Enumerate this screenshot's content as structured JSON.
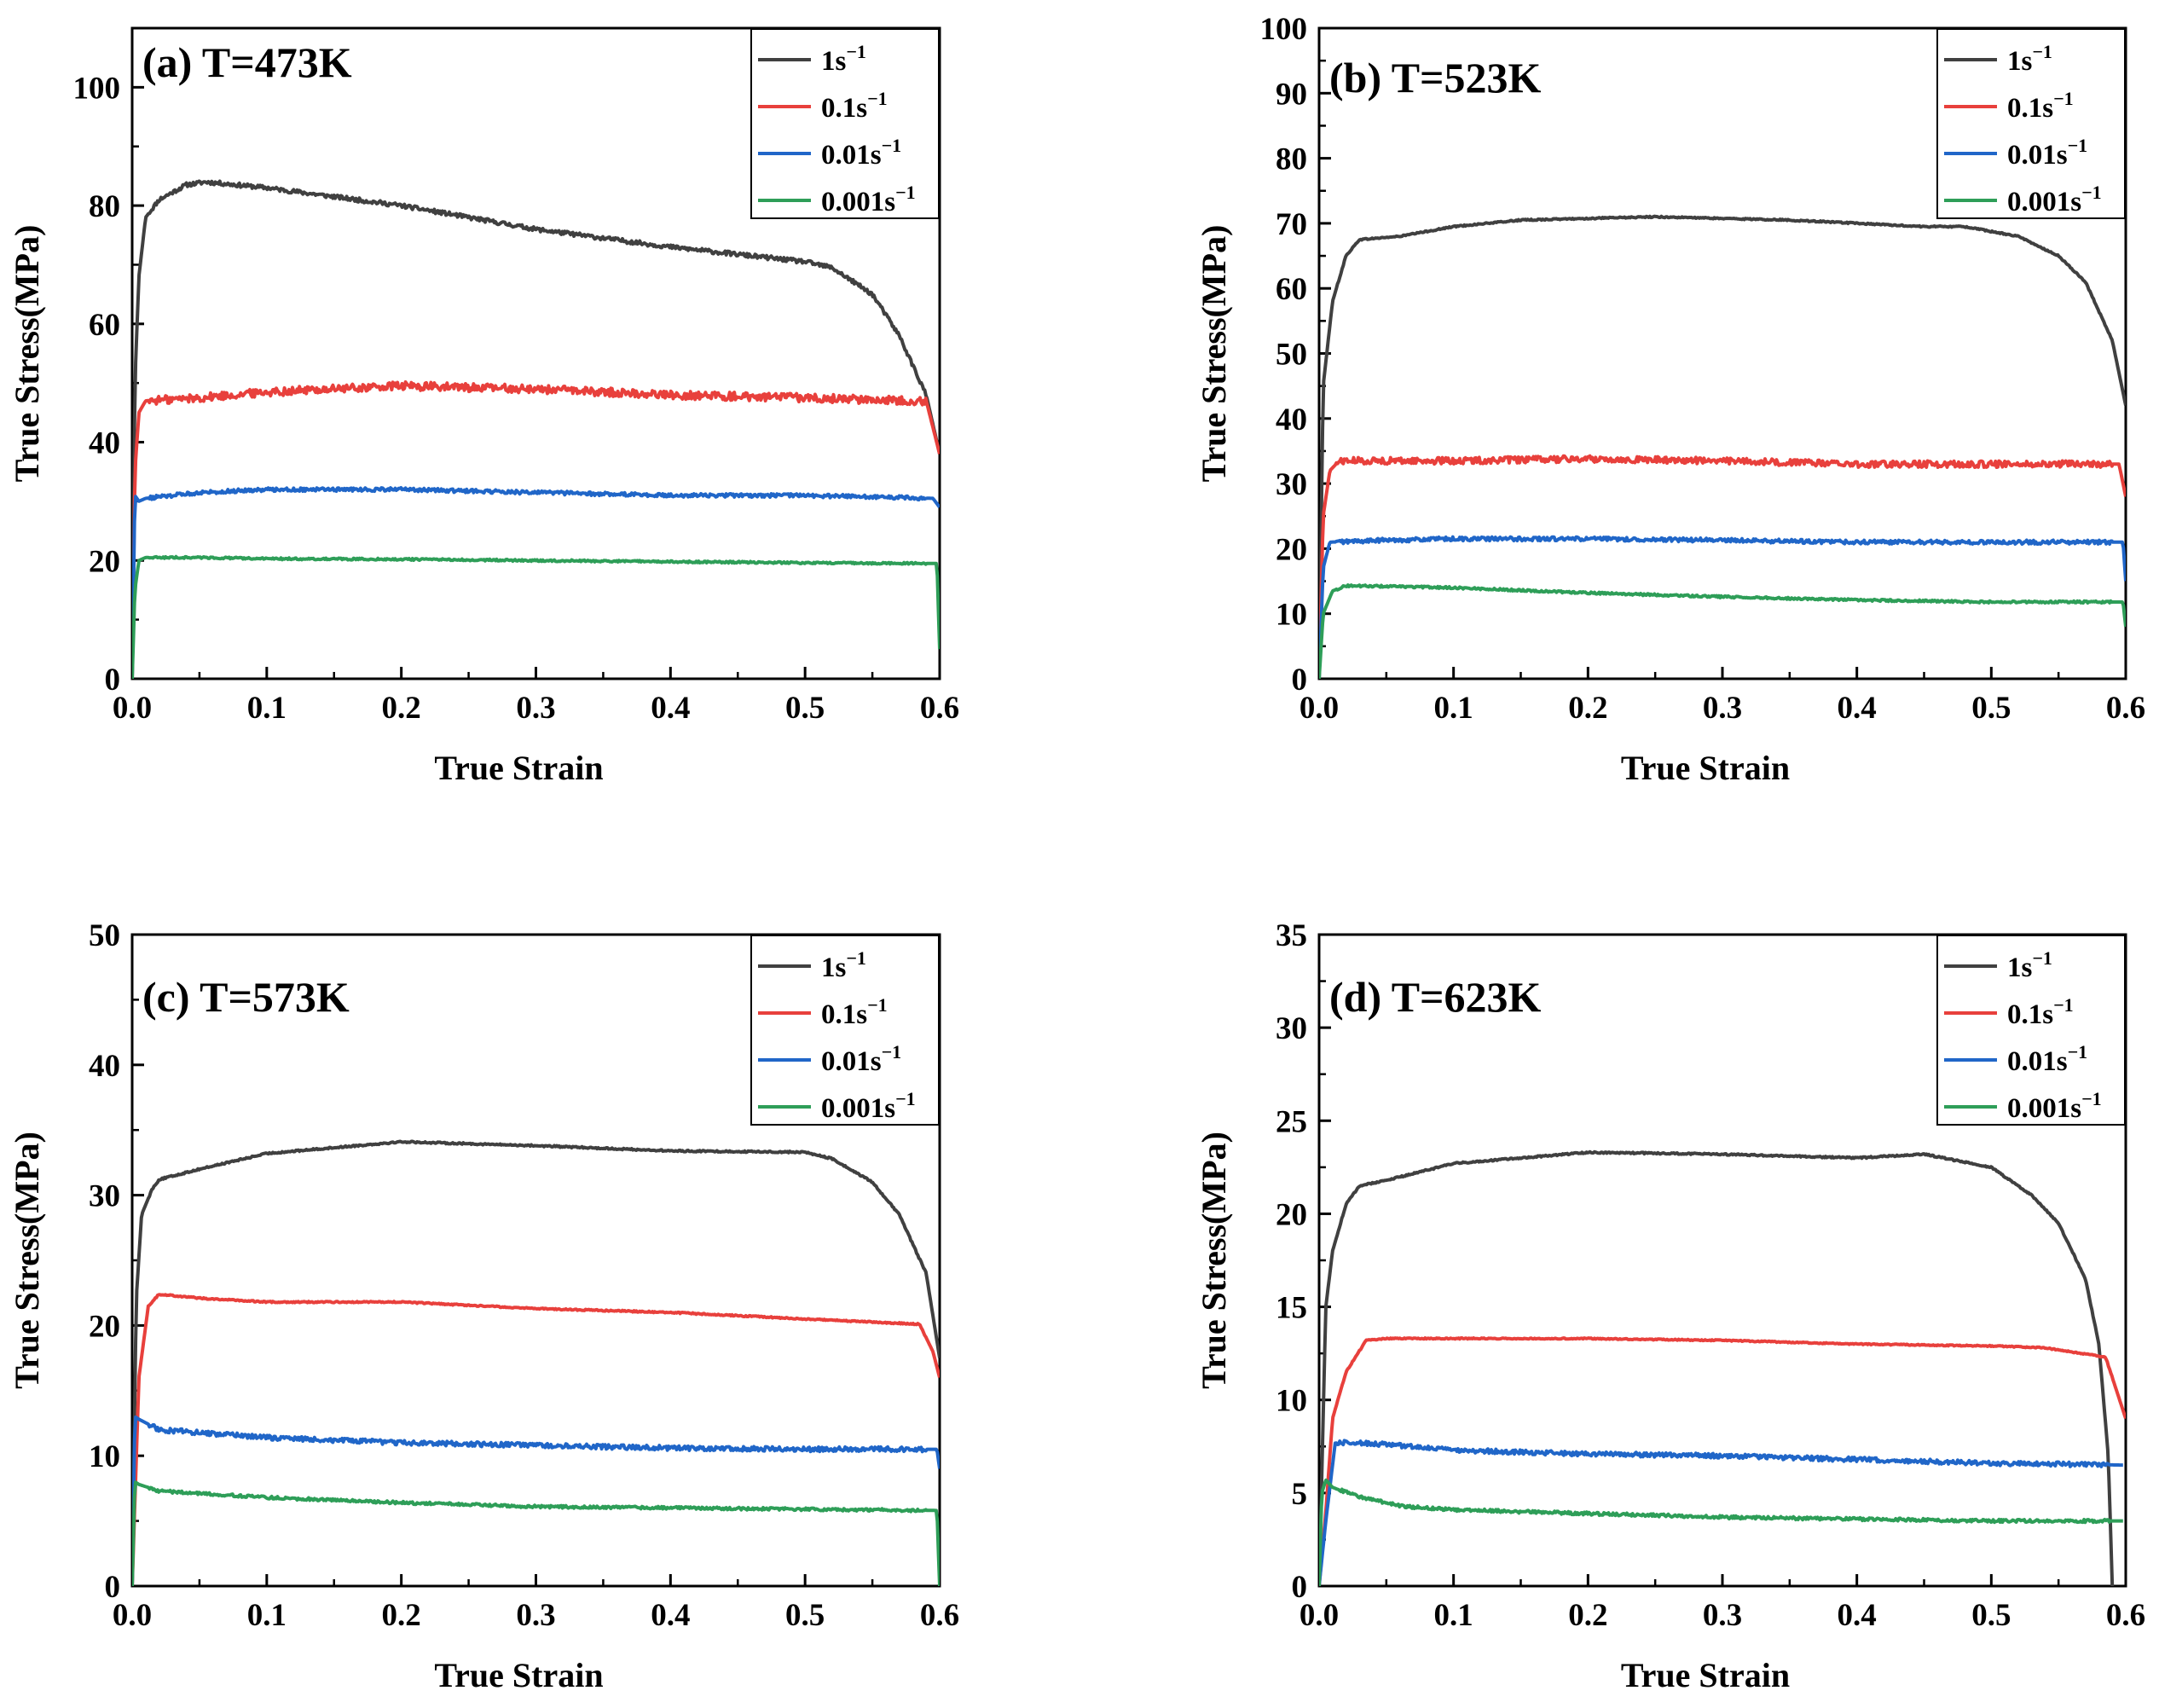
{
  "chart_data": [
    {
      "type": "line",
      "title": "(a) T=473K",
      "xlabel": "True Strain",
      "ylabel": "True Stress(MPa)",
      "xlim": [
        0,
        0.6
      ],
      "ylim": [
        0,
        110
      ],
      "xticks": [
        0,
        0.1,
        0.2,
        0.3,
        0.4,
        0.5,
        0.6
      ],
      "xtick_labels": [
        "0.0",
        "0.1",
        "0.2",
        "0.3",
        "0.4",
        "0.5",
        "0.6"
      ],
      "yticks": [
        0,
        20,
        40,
        60,
        80,
        100
      ],
      "ytick_labels": [
        "0",
        "20",
        "40",
        "60",
        "80",
        "100"
      ],
      "legend_position": "top-right",
      "series": [
        {
          "name": "1s",
          "sup": "−1",
          "color": "#404040",
          "noise": 0.35,
          "x": [
            0,
            0.002,
            0.005,
            0.01,
            0.02,
            0.04,
            0.055,
            0.1,
            0.2,
            0.3,
            0.4,
            0.5,
            0.52,
            0.55,
            0.57,
            0.59,
            0.6
          ],
          "y": [
            0,
            50,
            68,
            78,
            81,
            83.5,
            84,
            83,
            80,
            76,
            73,
            70.5,
            69.5,
            65,
            58,
            48,
            38
          ]
        },
        {
          "name": "0.1s",
          "sup": "−1",
          "color": "#e8403c",
          "noise": 0.7,
          "x": [
            0,
            0.002,
            0.005,
            0.01,
            0.05,
            0.1,
            0.2,
            0.3,
            0.4,
            0.5,
            0.59,
            0.6
          ],
          "y": [
            0,
            35,
            45,
            47,
            47.5,
            48.5,
            49.5,
            49,
            48,
            47.5,
            47,
            38
          ]
        },
        {
          "name": "0.01s",
          "sup": "−1",
          "color": "#2066c8",
          "noise": 0.3,
          "x": [
            0,
            0.002,
            0.005,
            0.01,
            0.05,
            0.1,
            0.2,
            0.3,
            0.4,
            0.5,
            0.595,
            0.6
          ],
          "y": [
            0,
            31,
            30,
            30.5,
            31.5,
            32,
            32,
            31.5,
            31,
            31,
            30.5,
            29
          ]
        },
        {
          "name": "0.001s",
          "sup": "−1",
          "color": "#2e9e58",
          "noise": 0.15,
          "x": [
            0,
            0.002,
            0.005,
            0.01,
            0.05,
            0.1,
            0.2,
            0.3,
            0.4,
            0.5,
            0.598,
            0.6
          ],
          "y": [
            0,
            15,
            20,
            20.5,
            20.5,
            20.3,
            20.2,
            20,
            19.8,
            19.6,
            19.5,
            5
          ]
        }
      ]
    },
    {
      "type": "line",
      "title": "(b) T=523K",
      "xlabel": "True Strain",
      "ylabel": "True Stress(MPa)",
      "xlim": [
        0,
        0.6
      ],
      "ylim": [
        0,
        100
      ],
      "xticks": [
        0,
        0.1,
        0.2,
        0.3,
        0.4,
        0.5,
        0.6
      ],
      "xtick_labels": [
        "0.0",
        "0.1",
        "0.2",
        "0.3",
        "0.4",
        "0.5",
        "0.6"
      ],
      "yticks": [
        0,
        10,
        20,
        30,
        40,
        50,
        60,
        70,
        80,
        90,
        100
      ],
      "ytick_labels": [
        "0",
        "10",
        "20",
        "30",
        "40",
        "50",
        "60",
        "70",
        "80",
        "90",
        "100"
      ],
      "legend_position": "top-right",
      "series": [
        {
          "name": "1s",
          "sup": "−1",
          "color": "#404040",
          "noise": 0.1,
          "x": [
            0,
            0.003,
            0.01,
            0.02,
            0.03,
            0.06,
            0.1,
            0.15,
            0.25,
            0.35,
            0.45,
            0.48,
            0.52,
            0.55,
            0.57,
            0.59,
            0.6
          ],
          "y": [
            0,
            45,
            58,
            65,
            67.5,
            68,
            69.5,
            70.5,
            71,
            70.5,
            69.5,
            69.5,
            68,
            65,
            61,
            52,
            42
          ]
        },
        {
          "name": "0.1s",
          "sup": "−1",
          "color": "#e8403c",
          "noise": 0.5,
          "x": [
            0,
            0.003,
            0.008,
            0.015,
            0.1,
            0.2,
            0.3,
            0.4,
            0.5,
            0.595,
            0.6
          ],
          "y": [
            0,
            25,
            32,
            33.5,
            33.5,
            33.8,
            33.5,
            33,
            33,
            33,
            28
          ]
        },
        {
          "name": "0.01s",
          "sup": "−1",
          "color": "#2066c8",
          "noise": 0.3,
          "x": [
            0,
            0.003,
            0.008,
            0.05,
            0.1,
            0.2,
            0.3,
            0.4,
            0.5,
            0.598,
            0.6
          ],
          "y": [
            0,
            17,
            21,
            21.3,
            21.5,
            21.5,
            21.3,
            21,
            21,
            21,
            15
          ]
        },
        {
          "name": "0.001s",
          "sup": "−1",
          "color": "#2e9e58",
          "noise": 0.15,
          "x": [
            0,
            0.003,
            0.01,
            0.02,
            0.05,
            0.1,
            0.2,
            0.3,
            0.4,
            0.5,
            0.598,
            0.6
          ],
          "y": [
            0,
            10,
            13.5,
            14.3,
            14.2,
            14,
            13.2,
            12.6,
            12.1,
            11.8,
            11.8,
            8
          ]
        }
      ]
    },
    {
      "type": "line",
      "title": "(c) T=573K",
      "xlabel": "True Strain",
      "ylabel": "True Stress(MPa)",
      "xlim": [
        0,
        0.6
      ],
      "ylim": [
        0,
        50
      ],
      "xticks": [
        0,
        0.1,
        0.2,
        0.3,
        0.4,
        0.5,
        0.6
      ],
      "xtick_labels": [
        "0.0",
        "0.1",
        "0.2",
        "0.3",
        "0.4",
        "0.5",
        "0.6"
      ],
      "yticks": [
        0,
        10,
        20,
        30,
        40,
        50
      ],
      "ytick_labels": [
        "0",
        "10",
        "20",
        "30",
        "40",
        "50"
      ],
      "legend_position": "top-right",
      "series": [
        {
          "name": "1s",
          "sup": "−1",
          "color": "#404040",
          "noise": 0.06,
          "x": [
            0,
            0.003,
            0.007,
            0.015,
            0.02,
            0.05,
            0.1,
            0.2,
            0.3,
            0.4,
            0.5,
            0.52,
            0.55,
            0.57,
            0.59,
            0.6
          ],
          "y": [
            0,
            22,
            28.5,
            30.5,
            31.2,
            32,
            33.2,
            34.1,
            33.8,
            33.4,
            33.3,
            32.8,
            31,
            28.5,
            24,
            17.5
          ]
        },
        {
          "name": "0.1s",
          "sup": "−1",
          "color": "#e8403c",
          "noise": 0.05,
          "x": [
            0,
            0.005,
            0.012,
            0.02,
            0.05,
            0.1,
            0.2,
            0.3,
            0.4,
            0.5,
            0.585,
            0.595,
            0.6
          ],
          "y": [
            0,
            16,
            21.5,
            22.4,
            22.1,
            21.8,
            21.8,
            21.3,
            21,
            20.5,
            20.1,
            18,
            16
          ]
        },
        {
          "name": "0.01s",
          "sup": "−1",
          "color": "#2066c8",
          "noise": 0.18,
          "x": [
            0,
            0.002,
            0.005,
            0.02,
            0.1,
            0.2,
            0.3,
            0.4,
            0.5,
            0.598,
            0.6
          ],
          "y": [
            0,
            13,
            12.8,
            12,
            11.4,
            11,
            10.8,
            10.6,
            10.5,
            10.5,
            9
          ]
        },
        {
          "name": "0.001s",
          "sup": "−1",
          "color": "#2e9e58",
          "noise": 0.1,
          "x": [
            0,
            0.002,
            0.005,
            0.02,
            0.1,
            0.2,
            0.3,
            0.4,
            0.5,
            0.598,
            0.6
          ],
          "y": [
            0,
            8,
            7.8,
            7.3,
            6.8,
            6.4,
            6.1,
            6,
            5.9,
            5.8,
            0
          ]
        }
      ]
    },
    {
      "type": "line",
      "title": "(d) T=623K",
      "xlabel": "True Strain",
      "ylabel": "True Stress(MPa)",
      "xlim": [
        0,
        0.6
      ],
      "ylim": [
        0,
        35
      ],
      "xticks": [
        0,
        0.1,
        0.2,
        0.3,
        0.4,
        0.5,
        0.6
      ],
      "xtick_labels": [
        "0.0",
        "0.1",
        "0.2",
        "0.3",
        "0.4",
        "0.5",
        "0.6"
      ],
      "yticks": [
        0,
        5,
        10,
        15,
        20,
        25,
        30,
        35
      ],
      "ytick_labels": [
        "0",
        "5",
        "10",
        "15",
        "20",
        "25",
        "30",
        "35"
      ],
      "legend_position": "top-right",
      "series": [
        {
          "name": "1s",
          "sup": "−1",
          "color": "#404040",
          "noise": 0.04,
          "x": [
            0,
            0.005,
            0.01,
            0.02,
            0.03,
            0.05,
            0.1,
            0.2,
            0.3,
            0.4,
            0.45,
            0.5,
            0.53,
            0.55,
            0.57,
            0.58,
            0.587,
            0.59
          ],
          "y": [
            0,
            15,
            18,
            20.5,
            21.5,
            21.8,
            22.7,
            23.3,
            23.2,
            23,
            23.2,
            22.5,
            21,
            19.5,
            16.5,
            13,
            7,
            0
          ]
        },
        {
          "name": "0.1s",
          "sup": "−1",
          "color": "#e8403c",
          "noise": 0.03,
          "x": [
            0,
            0.005,
            0.01,
            0.02,
            0.035,
            0.05,
            0.1,
            0.2,
            0.3,
            0.4,
            0.5,
            0.54,
            0.585,
            0.6
          ],
          "y": [
            0,
            4,
            9,
            11.5,
            13.2,
            13.3,
            13.3,
            13.3,
            13.2,
            13,
            12.9,
            12.8,
            12.3,
            9
          ]
        },
        {
          "name": "0.01s",
          "sup": "−1",
          "color": "#2066c8",
          "noise": 0.12,
          "x": [
            0,
            0.005,
            0.012,
            0.03,
            0.05,
            0.1,
            0.2,
            0.3,
            0.4,
            0.5,
            0.598
          ],
          "y": [
            0,
            3.5,
            7.7,
            7.7,
            7.6,
            7.3,
            7.1,
            7,
            6.8,
            6.6,
            6.5
          ]
        },
        {
          "name": "0.001s",
          "sup": "−1",
          "color": "#2e9e58",
          "noise": 0.08,
          "x": [
            0,
            0.002,
            0.005,
            0.01,
            0.03,
            0.06,
            0.1,
            0.2,
            0.3,
            0.4,
            0.5,
            0.598
          ],
          "y": [
            0,
            5,
            5.7,
            5.3,
            4.8,
            4.3,
            4.1,
            3.9,
            3.7,
            3.6,
            3.5,
            3.5
          ]
        }
      ]
    }
  ]
}
